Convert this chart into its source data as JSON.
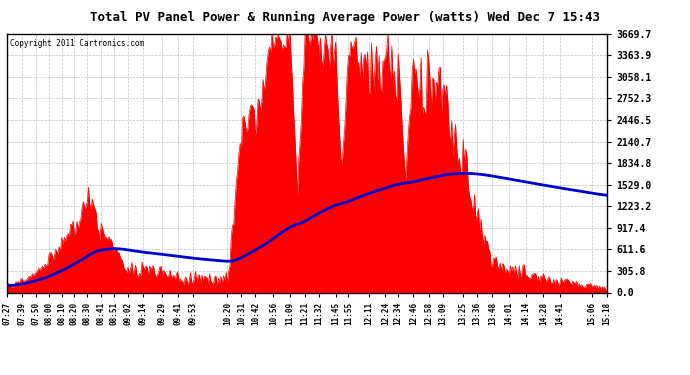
{
  "title": "Total PV Panel Power & Running Average Power (watts) Wed Dec 7 15:43",
  "copyright": "Copyright 2011 Cartronics.com",
  "background_color": "#ffffff",
  "plot_bg_color": "#ffffff",
  "fill_color": "#ff0000",
  "line_color": "#0000cc",
  "ymax": 3669.7,
  "ymin": 0.0,
  "yticks": [
    0.0,
    305.8,
    611.6,
    917.4,
    1223.2,
    1529.0,
    1834.8,
    2140.7,
    2446.5,
    2752.3,
    3058.1,
    3363.9,
    3669.7
  ],
  "xtick_labels": [
    "07:27",
    "07:39",
    "07:50",
    "08:00",
    "08:10",
    "08:20",
    "08:30",
    "08:41",
    "08:51",
    "09:02",
    "09:14",
    "09:29",
    "09:41",
    "09:53",
    "10:20",
    "10:31",
    "10:42",
    "10:56",
    "11:09",
    "11:21",
    "11:32",
    "11:45",
    "11:55",
    "12:11",
    "12:24",
    "12:34",
    "12:46",
    "12:58",
    "13:09",
    "13:25",
    "13:36",
    "13:48",
    "14:01",
    "14:14",
    "14:28",
    "14:41",
    "15:06",
    "15:18"
  ]
}
